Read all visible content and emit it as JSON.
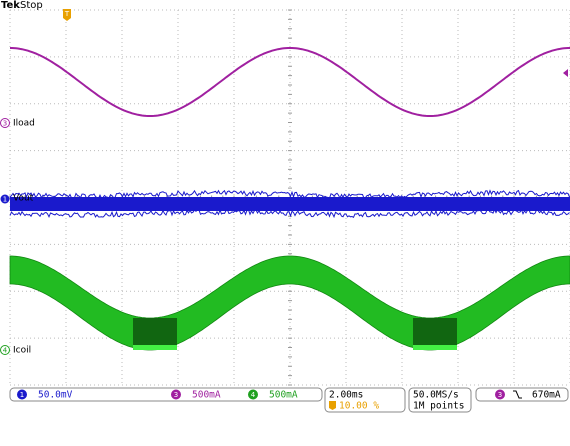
{
  "header": {
    "brand": "Tek",
    "status": "Stop"
  },
  "channels": [
    {
      "marker": "3",
      "label": "Iload"
    },
    {
      "marker": "1",
      "label": "Vout"
    },
    {
      "marker": "4",
      "label": "Icoil"
    }
  ],
  "readout": {
    "ch1": {
      "marker": "1",
      "scale": "50.0mV"
    },
    "ch3": {
      "marker": "3",
      "scale": "500mA"
    },
    "ch4": {
      "marker": "4",
      "scale": "500mA"
    },
    "timebase": "2.00ms",
    "trigger_position": "10.00 %",
    "sample_rate": "50.0MS/s",
    "record_length": "1M points",
    "trigger": {
      "source": "3",
      "level": "670mA"
    }
  }
}
